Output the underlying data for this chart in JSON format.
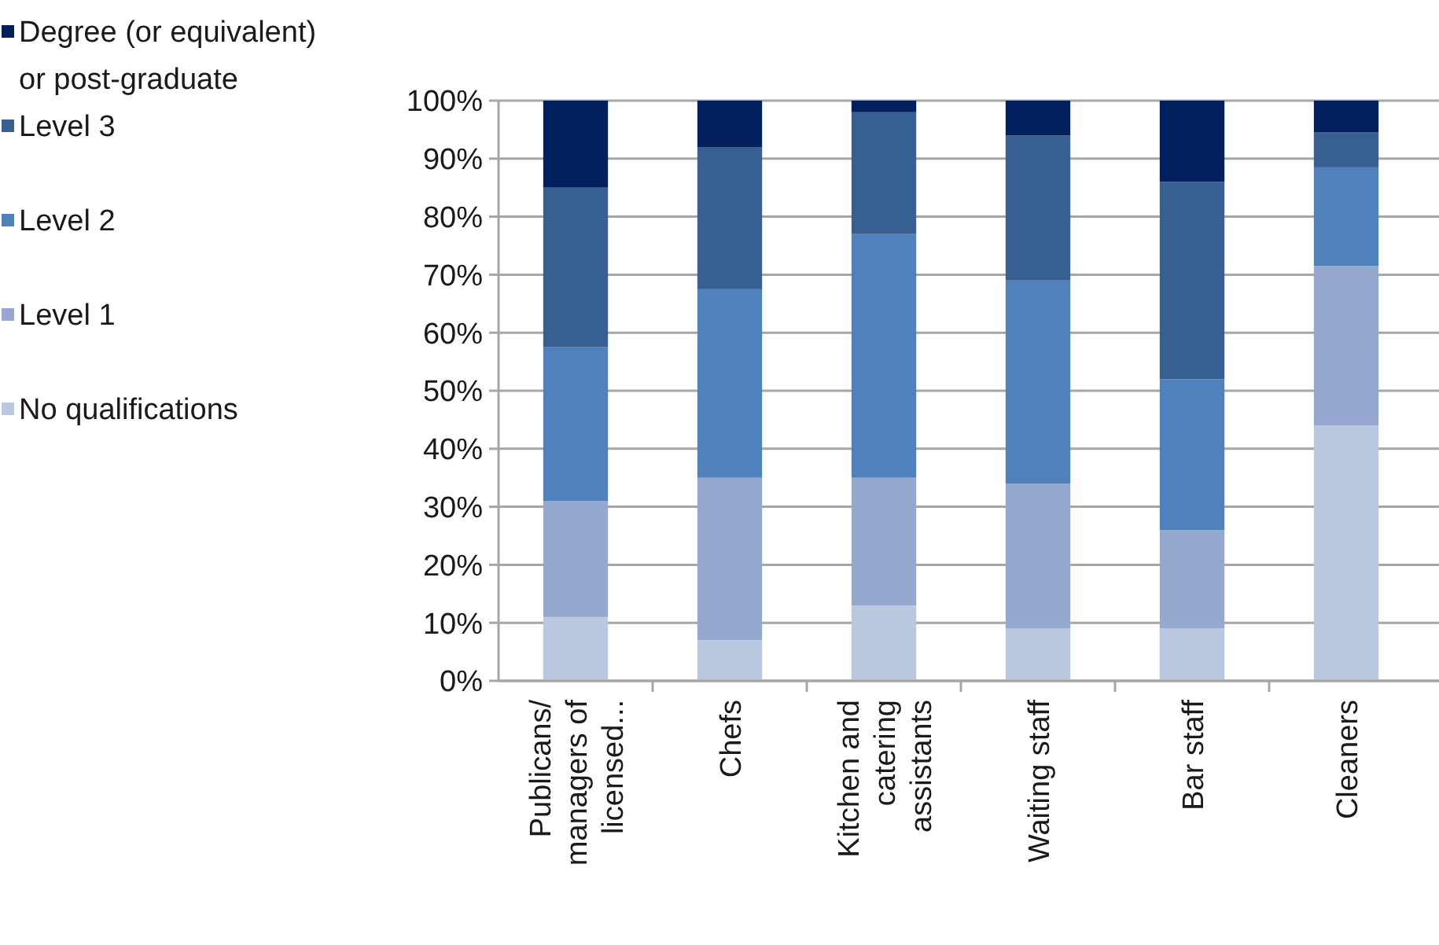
{
  "chart_data": {
    "type": "bar",
    "stacked": true,
    "categories": [
      "Publicans/ managers of licensed...",
      "Chefs",
      "Kitchen and catering assistants",
      "Waiting staff",
      "Bar staff",
      "Cleaners"
    ],
    "series": [
      {
        "name": "No qualifications",
        "color": "#bac8e0",
        "values": [
          11,
          7,
          13,
          9,
          9,
          44
        ]
      },
      {
        "name": "Level 1",
        "color": "#95a9d0",
        "values": [
          20,
          28,
          22,
          25,
          17,
          27.5
        ]
      },
      {
        "name": "Level 2",
        "color": "#4f81bd",
        "values": [
          26.5,
          32.5,
          42,
          35,
          26,
          17
        ]
      },
      {
        "name": "Level 3",
        "color": "#375f91",
        "values": [
          27.5,
          24.5,
          21,
          25,
          34,
          6
        ]
      },
      {
        "name": "Degree (or equivalent) or post-graduate",
        "color": "#03205e",
        "values": [
          15,
          8,
          2,
          6,
          14,
          5.5
        ]
      }
    ],
    "ylim": [
      0,
      100
    ],
    "yticks": [
      {
        "value": 0,
        "label": "0%"
      },
      {
        "value": 10,
        "label": "10%"
      },
      {
        "value": 20,
        "label": "20%"
      },
      {
        "value": 30,
        "label": "30%"
      },
      {
        "value": 40,
        "label": "40%"
      },
      {
        "value": 50,
        "label": "50%"
      },
      {
        "value": 60,
        "label": "60%"
      },
      {
        "value": 70,
        "label": "70%"
      },
      {
        "value": 80,
        "label": "80%"
      },
      {
        "value": 90,
        "label": "90%"
      },
      {
        "value": 100,
        "label": "100%"
      }
    ],
    "grid": "y",
    "legend": "left"
  }
}
